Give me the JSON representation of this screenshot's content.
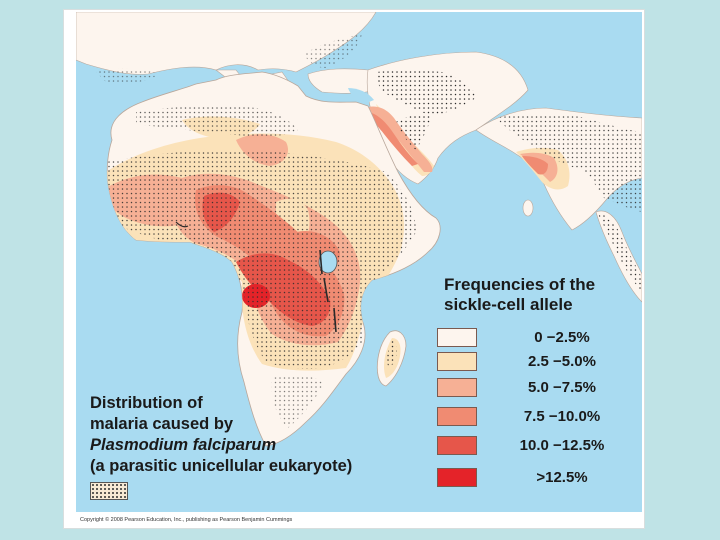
{
  "legend": {
    "title_line1": "Frequencies of the",
    "title_line2": "sickle-cell allele",
    "items": [
      {
        "label": "0 −2.5%",
        "color": "#fdf5ee"
      },
      {
        "label": "2.5 −5.0%",
        "color": "#fbe2b9"
      },
      {
        "label": "5.0 −7.5%",
        "color": "#f6b095"
      },
      {
        "label": "7.5 −10.0%",
        "color": "#f08b72"
      },
      {
        "label": "10.0 −12.5%",
        "color": "#e6564a"
      },
      {
        "label": ">12.5%",
        "color": "#e42329"
      }
    ]
  },
  "malaria_legend": {
    "line1": "Distribution of",
    "line2": "malaria caused by",
    "line3": "Plasmodium falciparum",
    "line4": "(a parasitic unicellular eukaryote)",
    "pattern": "stippled-dots"
  },
  "colors": {
    "ocean": "#a9dbf1",
    "land": "#fdf5ee",
    "slide_background": "#bfe3e6"
  },
  "copyright": "Copyright © 2008 Pearson Education, Inc., publishing as Pearson Benjamin Cummings"
}
